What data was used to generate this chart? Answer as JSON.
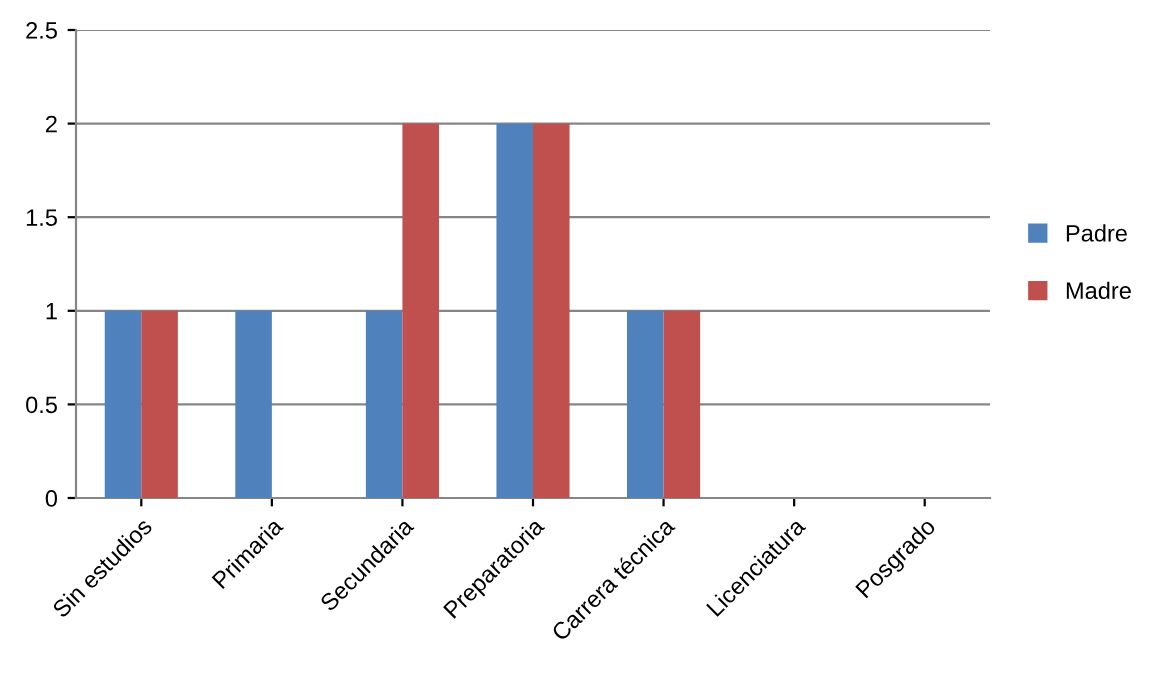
{
  "chart_data": {
    "type": "bar",
    "categories": [
      "Sin estudios",
      "Primaria",
      "Secundaria",
      "Preparatoria",
      "Carrera técnica",
      "Licenciatura",
      "Posgrado"
    ],
    "series": [
      {
        "name": "Padre",
        "color": "#4f81bd",
        "values": [
          1,
          1,
          1,
          2,
          1,
          0,
          0
        ]
      },
      {
        "name": "Madre",
        "color": "#c0504d",
        "values": [
          1,
          0,
          2,
          2,
          1,
          0,
          0
        ]
      }
    ],
    "ylim": [
      0,
      2.5
    ],
    "yticks": [
      0,
      0.5,
      1,
      1.5,
      2,
      2.5
    ],
    "grid": "y",
    "legend": "right"
  }
}
